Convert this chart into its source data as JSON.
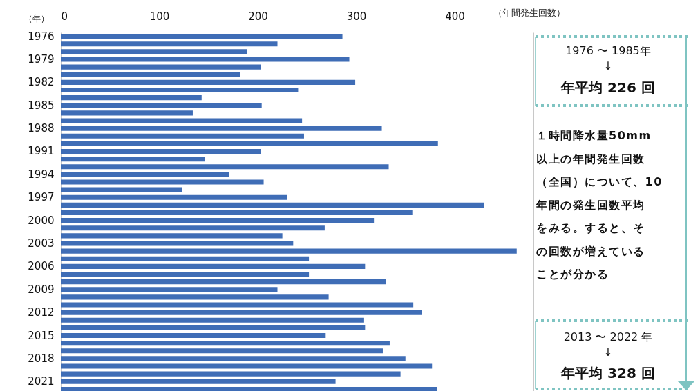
{
  "chart_data": {
    "type": "bar",
    "orientation": "horizontal",
    "xlabel": "（年間発生回数）",
    "ylabel": "（年）",
    "categories": [
      "1976",
      null,
      null,
      "1979",
      null,
      null,
      "1982",
      null,
      null,
      "1985",
      null,
      null,
      "1988",
      null,
      null,
      "1991",
      null,
      null,
      "1994",
      null,
      null,
      "1997",
      null,
      null,
      "2000",
      null,
      null,
      "2003",
      null,
      null,
      "2006",
      null,
      null,
      "2009",
      null,
      null,
      "2012",
      null,
      null,
      "2015",
      null,
      null,
      "2018",
      null,
      null,
      "2021",
      null
    ],
    "values": [
      286,
      220,
      189,
      293,
      203,
      182,
      299,
      241,
      143,
      204,
      134,
      245,
      326,
      247,
      383,
      203,
      146,
      333,
      171,
      206,
      123,
      230,
      430,
      357,
      318,
      268,
      225,
      236,
      463,
      252,
      309,
      252,
      330,
      220,
      272,
      358,
      367,
      308,
      309,
      269,
      334,
      327,
      350,
      377,
      345,
      279,
      382
    ],
    "color": "#3f6db6",
    "xlim": [
      0,
      480
    ],
    "xticks": [
      0,
      100,
      200,
      300,
      400,
      {
        "value": 480,
        "label": null
      }
    ],
    "grid": "x",
    "annotations": [
      "1976 〜 1985年",
      "↓",
      "年平均 226 回",
      "１時間降水量50mm",
      "以上の年間発生回数",
      "（全国）について、10",
      "年間の発生回数平均",
      "をみる。すると、そ",
      "の回数が増えている",
      "ことが分かる",
      "2013 〜 2022 年",
      "↓",
      "年平均 328 回"
    ]
  }
}
